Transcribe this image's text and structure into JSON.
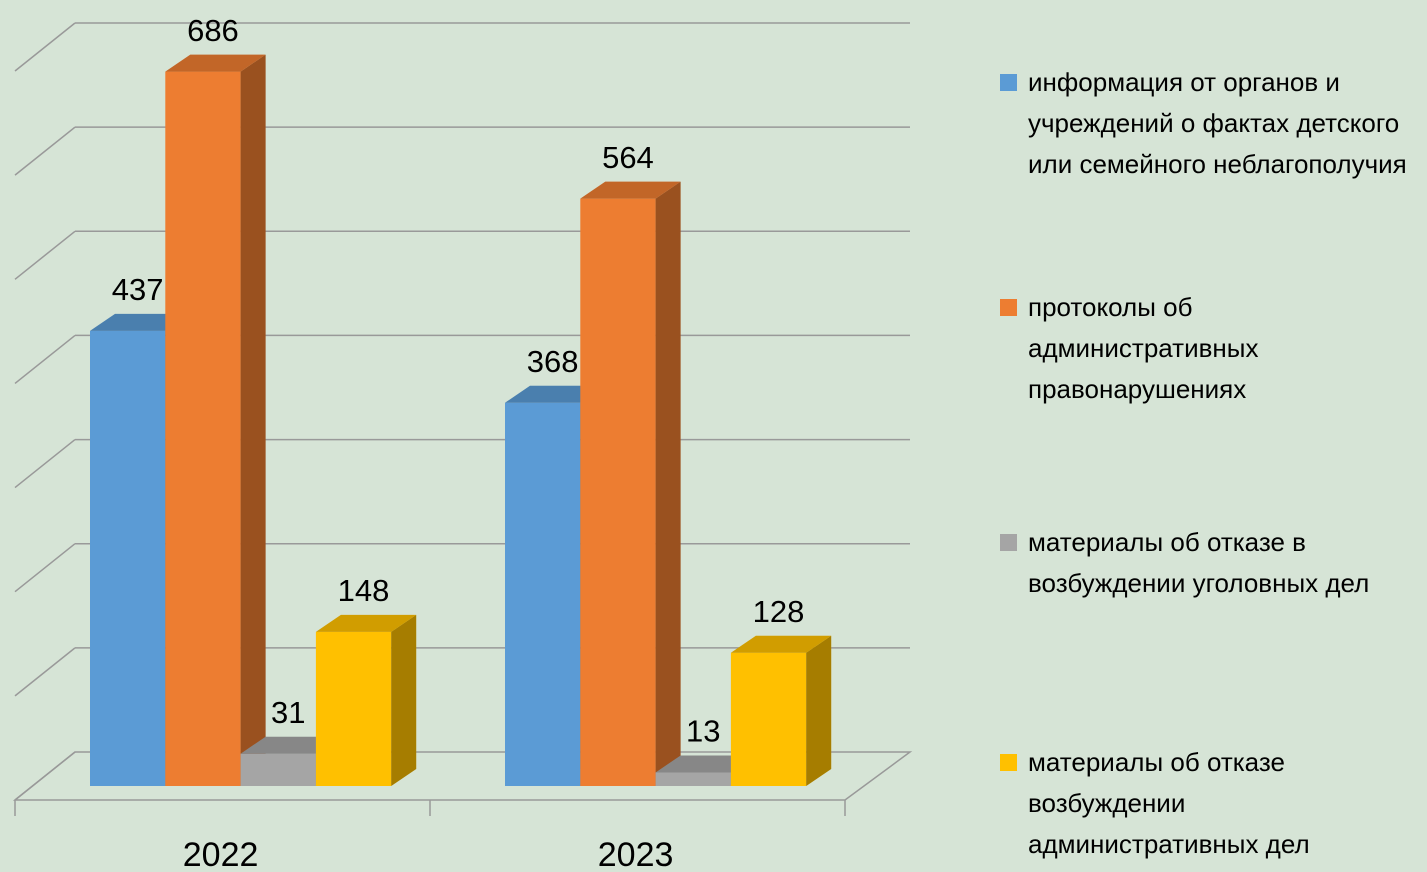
{
  "chart_data": {
    "type": "bar3d",
    "categories": [
      "2022",
      "2023"
    ],
    "series": [
      {
        "name": "информация от органов и учреждений о фактах детского или семейного неблагополучия",
        "color": "#5b9bd5",
        "values": [
          437,
          368
        ]
      },
      {
        "name": "протоколы об административных правонарушениях",
        "color": "#ed7d31",
        "values": [
          686,
          564
        ]
      },
      {
        "name": "материалы об отказе в возбуждении уголовных дел",
        "color": "#a5a5a5",
        "values": [
          31,
          13
        ]
      },
      {
        "name": "материалы об отказе возбуждении административных дел",
        "color": "#ffc000",
        "values": [
          148,
          128
        ]
      }
    ],
    "ylim": [
      0,
      700
    ],
    "yticks": [
      0,
      100,
      200,
      300,
      400,
      500,
      600,
      700
    ],
    "grid": true,
    "legend": "right"
  }
}
